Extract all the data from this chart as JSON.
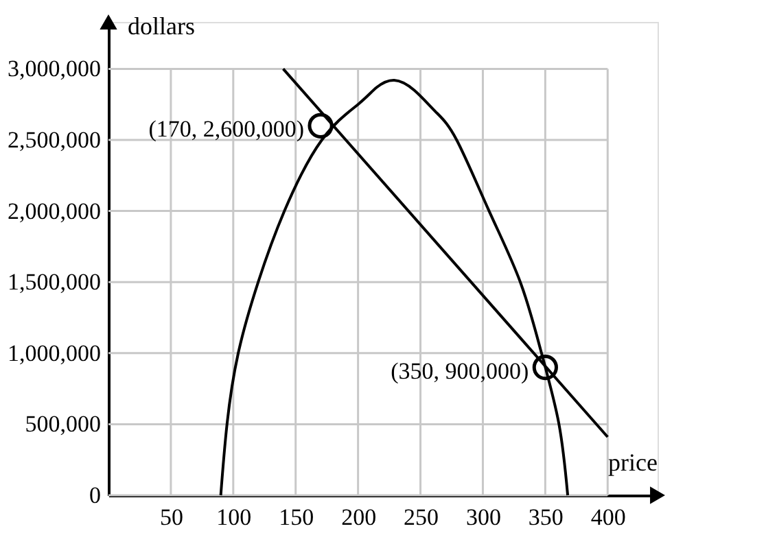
{
  "chart_data": {
    "type": "line",
    "xlabel": "price",
    "ylabel": "dollars",
    "xlim": [
      0,
      440
    ],
    "ylim": [
      0,
      3330000
    ],
    "xticks": [
      50,
      100,
      150,
      200,
      250,
      300,
      350,
      400
    ],
    "yticks": [
      0,
      {
        "value": 500000,
        "label": "500,000"
      },
      {
        "value": 1000000,
        "label": "1,000,000"
      },
      {
        "value": 1500000,
        "label": "1,500,000"
      },
      {
        "value": 2000000,
        "label": "2,000,000"
      },
      {
        "value": 2500000,
        "label": "2,500,000"
      },
      {
        "value": 3000000,
        "label": "3,000,000"
      }
    ],
    "grid": true,
    "series": [
      {
        "color": "#000000",
        "marker": "none",
        "x": [
          90,
          95,
          104,
          120,
          141,
          171,
          200,
          215,
          229,
          245,
          262,
          279,
          305,
          330,
          347,
          361,
          368
        ],
        "values": [
          0,
          500000,
          1000000,
          1500000,
          2000000,
          2500000,
          2750000,
          2870000,
          2920000,
          2850000,
          2700000,
          2500000,
          2000000,
          1500000,
          1000000,
          500000,
          0
        ]
      },
      {
        "color": "#000000",
        "marker": "none",
        "x": [
          140,
          400
        ],
        "values": [
          3000000,
          410000
        ]
      },
      {
        "type": "scatter",
        "color": "#000000",
        "marker": "circle",
        "x": [
          170,
          350
        ],
        "values": [
          2600000,
          900000
        ]
      }
    ],
    "annotations": [
      {
        "text": "(170, 2,600,000)",
        "x": 170,
        "y": 2600000
      },
      {
        "text": "(350, 900,000)",
        "x": 350,
        "y": 900000
      }
    ]
  }
}
